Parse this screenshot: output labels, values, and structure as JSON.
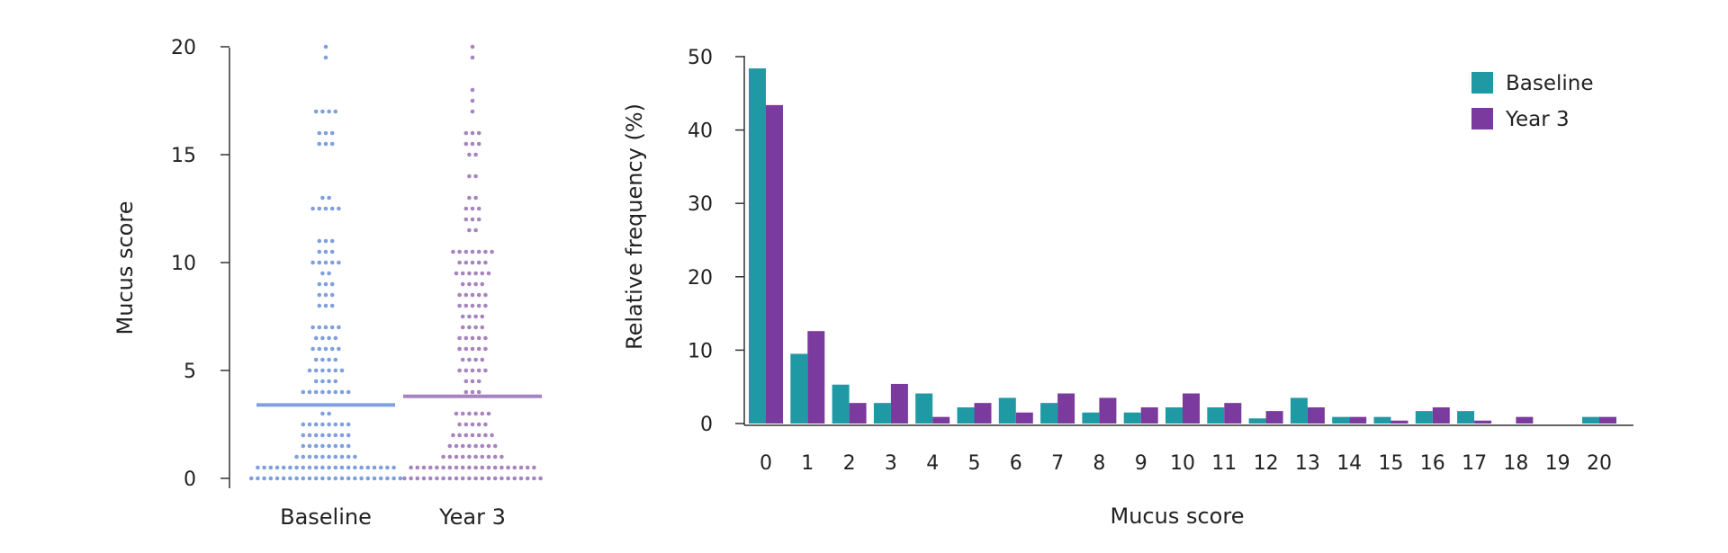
{
  "chart_data": [
    {
      "type": "scatter",
      "subtype": "dot-strip",
      "ylabel": "Mucus score",
      "ylim": [
        0,
        20
      ],
      "yticks": [
        "0",
        "5",
        "10",
        "15",
        "20"
      ],
      "categories": [
        "Baseline",
        "Year 3"
      ],
      "colors": [
        "#7fa0dd",
        "#a784c0"
      ],
      "medians": [
        3.4,
        3.8
      ],
      "groups": [
        {
          "name": "Baseline",
          "points": [
            {
              "y": 0,
              "n": 24
            },
            {
              "y": 0.5,
              "n": 22
            },
            {
              "y": 1,
              "n": 10
            },
            {
              "y": 1.5,
              "n": 8
            },
            {
              "y": 2,
              "n": 8
            },
            {
              "y": 2.5,
              "n": 8
            },
            {
              "y": 3,
              "n": 2
            },
            {
              "y": 4,
              "n": 8
            },
            {
              "y": 4.5,
              "n": 4
            },
            {
              "y": 5,
              "n": 6
            },
            {
              "y": 5.5,
              "n": 4
            },
            {
              "y": 6,
              "n": 5
            },
            {
              "y": 6.5,
              "n": 4
            },
            {
              "y": 7,
              "n": 5
            },
            {
              "y": 8,
              "n": 3
            },
            {
              "y": 8.5,
              "n": 3
            },
            {
              "y": 9,
              "n": 3
            },
            {
              "y": 9.5,
              "n": 2
            },
            {
              "y": 10,
              "n": 5
            },
            {
              "y": 10.5,
              "n": 3
            },
            {
              "y": 11,
              "n": 3
            },
            {
              "y": 12.5,
              "n": 5
            },
            {
              "y": 13,
              "n": 2
            },
            {
              "y": 15.5,
              "n": 3
            },
            {
              "y": 16,
              "n": 3
            },
            {
              "y": 17,
              "n": 4
            },
            {
              "y": 19.5,
              "n": 1
            },
            {
              "y": 20,
              "n": 1
            }
          ]
        },
        {
          "name": "Year 3",
          "points": [
            {
              "y": 0,
              "n": 22
            },
            {
              "y": 0.5,
              "n": 20
            },
            {
              "y": 1,
              "n": 10
            },
            {
              "y": 1.5,
              "n": 8
            },
            {
              "y": 2,
              "n": 7
            },
            {
              "y": 2.5,
              "n": 5
            },
            {
              "y": 3,
              "n": 6
            },
            {
              "y": 4,
              "n": 3
            },
            {
              "y": 4.5,
              "n": 3
            },
            {
              "y": 5,
              "n": 5
            },
            {
              "y": 5.5,
              "n": 4
            },
            {
              "y": 6,
              "n": 5
            },
            {
              "y": 6.5,
              "n": 5
            },
            {
              "y": 7,
              "n": 4
            },
            {
              "y": 7.5,
              "n": 4
            },
            {
              "y": 8,
              "n": 5
            },
            {
              "y": 8.5,
              "n": 5
            },
            {
              "y": 9,
              "n": 4
            },
            {
              "y": 9.5,
              "n": 6
            },
            {
              "y": 10,
              "n": 5
            },
            {
              "y": 10.5,
              "n": 7
            },
            {
              "y": 11.5,
              "n": 2
            },
            {
              "y": 12,
              "n": 3
            },
            {
              "y": 12.5,
              "n": 3
            },
            {
              "y": 13,
              "n": 2
            },
            {
              "y": 14,
              "n": 2
            },
            {
              "y": 15,
              "n": 2
            },
            {
              "y": 15.5,
              "n": 3
            },
            {
              "y": 16,
              "n": 3
            },
            {
              "y": 17,
              "n": 1
            },
            {
              "y": 17.5,
              "n": 1
            },
            {
              "y": 18,
              "n": 1
            },
            {
              "y": 19.5,
              "n": 1
            },
            {
              "y": 20,
              "n": 1
            }
          ]
        }
      ]
    },
    {
      "type": "bar",
      "xlabel": "Mucus score",
      "ylabel": "Relative frequency (%)",
      "ylim": [
        0,
        50
      ],
      "yticks": [
        "0",
        "10",
        "20",
        "30",
        "40",
        "50"
      ],
      "categories": [
        "0",
        "1",
        "2",
        "3",
        "4",
        "5",
        "6",
        "7",
        "8",
        "9",
        "10",
        "11",
        "12",
        "13",
        "14",
        "15",
        "16",
        "17",
        "18",
        "19",
        "20"
      ],
      "series": [
        {
          "name": "Baseline",
          "color": "#1f9aa5",
          "values": [
            48.4,
            9.5,
            5.3,
            2.8,
            4.1,
            2.2,
            3.5,
            2.8,
            1.5,
            1.5,
            2.2,
            2.2,
            0.7,
            3.5,
            0.9,
            0.9,
            1.7,
            1.7,
            0,
            0,
            0.9
          ]
        },
        {
          "name": "Year 3",
          "color": "#7b3a9e",
          "values": [
            43.4,
            12.6,
            2.8,
            5.4,
            0.9,
            2.8,
            1.5,
            4.1,
            3.5,
            2.2,
            4.1,
            2.8,
            1.7,
            2.2,
            0.9,
            0.4,
            2.2,
            0.4,
            0.9,
            0,
            0.9
          ]
        }
      ],
      "legend_position": "top-right"
    }
  ]
}
